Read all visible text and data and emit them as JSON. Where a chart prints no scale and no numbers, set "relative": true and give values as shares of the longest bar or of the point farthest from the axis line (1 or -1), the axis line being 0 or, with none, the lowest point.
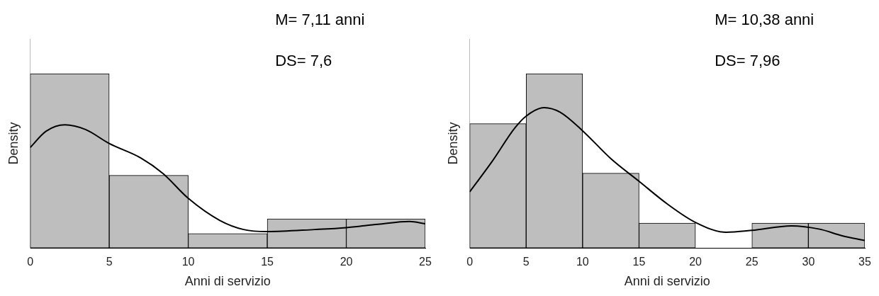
{
  "chart_data": [
    {
      "type": "histogram",
      "xlabel": "Anni di servizio",
      "ylabel": "Density",
      "relative": true,
      "bins": [
        0,
        5,
        10,
        15,
        20,
        25
      ],
      "values": [
        1,
        0.417,
        0.083,
        0.167,
        0.167
      ],
      "color": "#bebebe",
      "series": [
        {
          "type": "line",
          "color": "#000000",
          "x": [
            0,
            1,
            2.2,
            3.5,
            5,
            7,
            8.4,
            10,
            12,
            13.5,
            15,
            18,
            20,
            22,
            24,
            25
          ],
          "values": [
            0.577,
            0.67,
            0.707,
            0.68,
            0.6,
            0.517,
            0.428,
            0.285,
            0.158,
            0.106,
            0.094,
            0.106,
            0.117,
            0.136,
            0.152,
            0.139
          ]
        }
      ],
      "xlim": [
        0,
        25
      ],
      "xticks": [
        0,
        5,
        10,
        15,
        20,
        25
      ],
      "annotations": [
        "M= 7,11 anni",
        "DS= 7,6"
      ]
    },
    {
      "type": "histogram",
      "xlabel": "Anni di servizio",
      "ylabel": "Density",
      "relative": true,
      "bins": [
        0,
        5,
        10,
        15,
        20,
        25,
        30,
        35
      ],
      "values": [
        0.714,
        1,
        0.429,
        0.143,
        0,
        0.143,
        0.143
      ],
      "color": "#bebebe",
      "series": [
        {
          "type": "line",
          "color": "#000000",
          "x": [
            0,
            2,
            4,
            5,
            6.6,
            8,
            10,
            12.5,
            15,
            17.5,
            20,
            22.7,
            25,
            28.5,
            31,
            33,
            35
          ],
          "values": [
            0.322,
            0.498,
            0.689,
            0.757,
            0.806,
            0.78,
            0.673,
            0.513,
            0.383,
            0.253,
            0.147,
            0.09,
            0.101,
            0.127,
            0.108,
            0.07,
            0.043
          ]
        }
      ],
      "xlim": [
        0,
        35
      ],
      "xticks": [
        0,
        5,
        10,
        15,
        20,
        25,
        30,
        35
      ],
      "annotations": [
        "M= 10,38 anni",
        "DS= 7,96"
      ]
    }
  ]
}
